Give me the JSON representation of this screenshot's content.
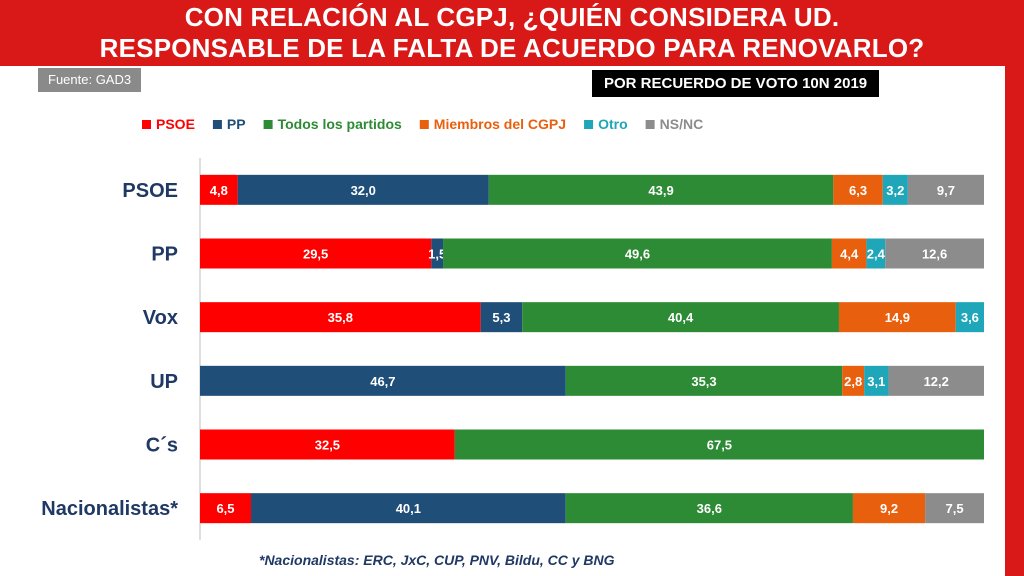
{
  "header": {
    "title_line1": "CON RELACIÓN AL CGPJ, ¿QUIÉN CONSIDERA UD.",
    "title_line2": "RESPONSABLE DE LA FALTA DE ACUERDO PARA RENOVARLO?",
    "source": "Fuente: GAD3",
    "vote_label": "POR RECUERDO DE VOTO 10N 2019"
  },
  "footnote": "*Nacionalistas: ERC, JxC, CUP, PNV, Bildu, CC y BNG",
  "colors": {
    "title_band": "#d91818",
    "label_text": "#1f3864"
  },
  "chart_data": {
    "type": "bar",
    "orientation": "horizontal",
    "stacked": true,
    "percent_stacked": true,
    "legend_position": "top",
    "grid": false,
    "categories": [
      "PSOE",
      "PP",
      "Vox",
      "UP",
      "C´s",
      "Nacionalistas*"
    ],
    "series": [
      {
        "name": "PSOE",
        "color": "#ff0000",
        "values": [
          4.8,
          29.5,
          35.8,
          null,
          32.5,
          6.5
        ],
        "labels": [
          "4,8",
          "29,5",
          "35,8",
          "",
          "32,5",
          "6,5"
        ]
      },
      {
        "name": "PP",
        "color": "#1f4e79",
        "values": [
          32.0,
          1.5,
          5.3,
          46.7,
          null,
          40.1
        ],
        "labels": [
          "32,0",
          "1,5",
          "5,3",
          "46,7",
          "",
          "40,1"
        ]
      },
      {
        "name": "Todos los partidos",
        "color": "#2e8b35",
        "values": [
          43.9,
          49.6,
          40.4,
          35.3,
          67.5,
          36.6
        ],
        "labels": [
          "43,9",
          "49,6",
          "40,4",
          "35,3",
          "67,5",
          "36,6"
        ]
      },
      {
        "name": "Miembros del CGPJ",
        "color": "#e8600e",
        "values": [
          6.3,
          4.4,
          14.9,
          2.8,
          null,
          9.2
        ],
        "labels": [
          "6,3",
          "4,4",
          "14,9",
          "2,8",
          "",
          "9,2"
        ]
      },
      {
        "name": "Otro",
        "color": "#1fa6b8",
        "values": [
          3.2,
          2.4,
          3.6,
          3.1,
          null,
          null
        ],
        "labels": [
          "3,2",
          "2,4",
          "3,6",
          "3,1",
          "",
          ""
        ]
      },
      {
        "name": "NS/NC",
        "color": "#8c8c8c",
        "values": [
          9.7,
          12.6,
          null,
          12.2,
          null,
          7.5
        ],
        "labels": [
          "9,7",
          "12,6",
          "",
          "12,2",
          "",
          "7,5"
        ]
      }
    ]
  }
}
